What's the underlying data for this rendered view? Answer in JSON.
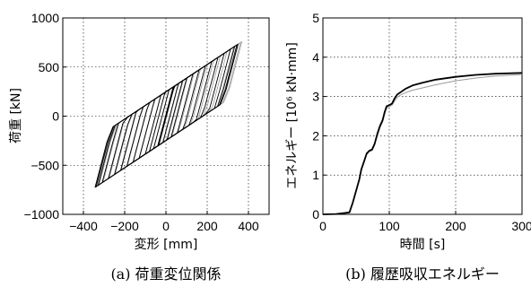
{
  "chart_data": [
    {
      "type": "line",
      "caption": "(a) 荷重変位関係",
      "xlabel": "変形 [mm]",
      "ylabel": "荷重 [kN]",
      "xlim": [
        -500,
        500
      ],
      "ylim": [
        -1000,
        1000
      ],
      "xticks": [
        -400,
        -200,
        0,
        200,
        400
      ],
      "yticks": [
        -1000,
        -500,
        0,
        500,
        1000
      ],
      "grid": true,
      "hysteresis": {
        "peak_displacement": 340,
        "peak_load": 720,
        "min_displacement": -350,
        "min_load": -700,
        "initial_stiffness_kN_per_mm": 8,
        "yield_load": 300,
        "cycle_amplitudes": [
          40,
          60,
          80,
          100,
          130,
          160,
          190,
          220,
          250,
          280,
          310,
          330,
          340,
          345
        ]
      },
      "series": [
        {
          "color": "#000000"
        },
        {
          "color": "#999999"
        }
      ]
    },
    {
      "type": "line",
      "caption": "(b) 履歴吸収エネルギー",
      "xlabel": "時間 [s]",
      "ylabel": "エネルギー [10⁶ kN·mm]",
      "xlim": [
        0,
        300
      ],
      "ylim": [
        0,
        5
      ],
      "xticks": [
        0,
        100,
        200,
        300
      ],
      "yticks": [
        0,
        1,
        2,
        3,
        4,
        5
      ],
      "grid": true,
      "series": [
        {
          "color": "#000000",
          "x": [
            0,
            20,
            40,
            45,
            50,
            55,
            58,
            62,
            66,
            70,
            74,
            78,
            82,
            86,
            90,
            93,
            96,
            100,
            104,
            108,
            112,
            118,
            125,
            135,
            150,
            170,
            200,
            230,
            260,
            300
          ],
          "y": [
            0,
            0.01,
            0.05,
            0.3,
            0.6,
            0.9,
            1.15,
            1.35,
            1.55,
            1.62,
            1.65,
            1.8,
            2.05,
            2.25,
            2.4,
            2.6,
            2.75,
            2.78,
            2.82,
            2.95,
            3.05,
            3.12,
            3.2,
            3.28,
            3.35,
            3.43,
            3.5,
            3.55,
            3.58,
            3.6
          ]
        },
        {
          "color": "#999999",
          "x": [
            0,
            20,
            40,
            45,
            50,
            55,
            58,
            62,
            66,
            70,
            74,
            78,
            82,
            86,
            90,
            93,
            96,
            100,
            104,
            108,
            112,
            118,
            125,
            135,
            150,
            170,
            200,
            230,
            260,
            300
          ],
          "y": [
            0,
            0.01,
            0.05,
            0.28,
            0.58,
            0.88,
            1.12,
            1.32,
            1.52,
            1.6,
            1.62,
            1.76,
            2.0,
            2.2,
            2.35,
            2.55,
            2.7,
            2.74,
            2.78,
            2.88,
            2.98,
            3.05,
            3.1,
            3.16,
            3.22,
            3.3,
            3.4,
            3.47,
            3.52,
            3.56
          ]
        }
      ]
    }
  ]
}
